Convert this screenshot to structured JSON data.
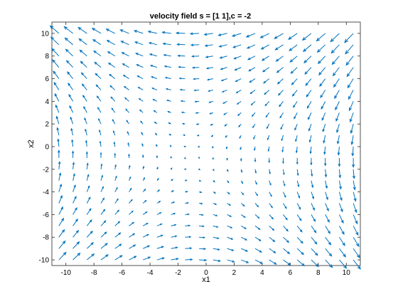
{
  "chart_data": {
    "type": "quiver",
    "title": "velocity field s = [1 1],c = -2",
    "xlabel": "x1",
    "ylabel": "x2",
    "xlim": [
      -11,
      11
    ],
    "ylim": [
      -10.5,
      11
    ],
    "x_ticks": [
      -10,
      -8,
      -6,
      -4,
      -2,
      0,
      2,
      4,
      6,
      8,
      10
    ],
    "y_ticks": [
      -10,
      -8,
      -6,
      -4,
      -2,
      0,
      2,
      4,
      6,
      8,
      10
    ],
    "grid": false,
    "legend": "none",
    "arrow_color": "#0072BD",
    "field": {
      "expression": "u = -1 - y, v = -1 - x",
      "x_range": [
        -10.5,
        10.5
      ],
      "y_range": [
        -10,
        10.5
      ],
      "step": 1
    }
  }
}
